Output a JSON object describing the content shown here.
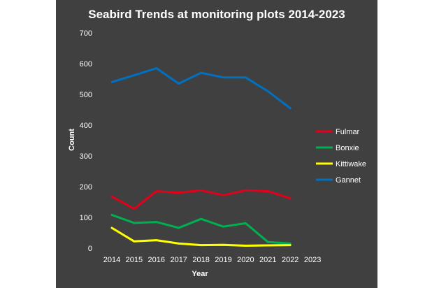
{
  "chart_data": {
    "type": "line",
    "title": "Seabird Trends at monitoring plots 2014-2023",
    "xlabel": "Year",
    "ylabel": "Count",
    "ylim": [
      0,
      700
    ],
    "yticks": [
      "0",
      "100",
      "200",
      "300",
      "400",
      "500",
      "600",
      "700"
    ],
    "x": [
      "2014",
      "2015",
      "2016",
      "2017",
      "2018",
      "2019",
      "2020",
      "2021",
      "2022",
      "2023"
    ],
    "grid": false,
    "legend_position": "right",
    "series": [
      {
        "name": "Fulmar",
        "color": "#e3001b",
        "values": [
          168,
          128,
          185,
          180,
          188,
          172,
          188,
          185,
          162,
          null
        ]
      },
      {
        "name": "Bonxie",
        "color": "#00b050",
        "values": [
          108,
          82,
          85,
          66,
          95,
          70,
          81,
          20,
          15,
          null
        ]
      },
      {
        "name": "Kittiwake",
        "color": "#ffff00",
        "values": [
          66,
          22,
          26,
          15,
          10,
          11,
          8,
          9,
          10,
          null
        ]
      },
      {
        "name": "Gannet",
        "color": "#0070c0",
        "values": [
          540,
          562,
          585,
          535,
          570,
          555,
          555,
          510,
          455,
          null
        ]
      }
    ]
  }
}
